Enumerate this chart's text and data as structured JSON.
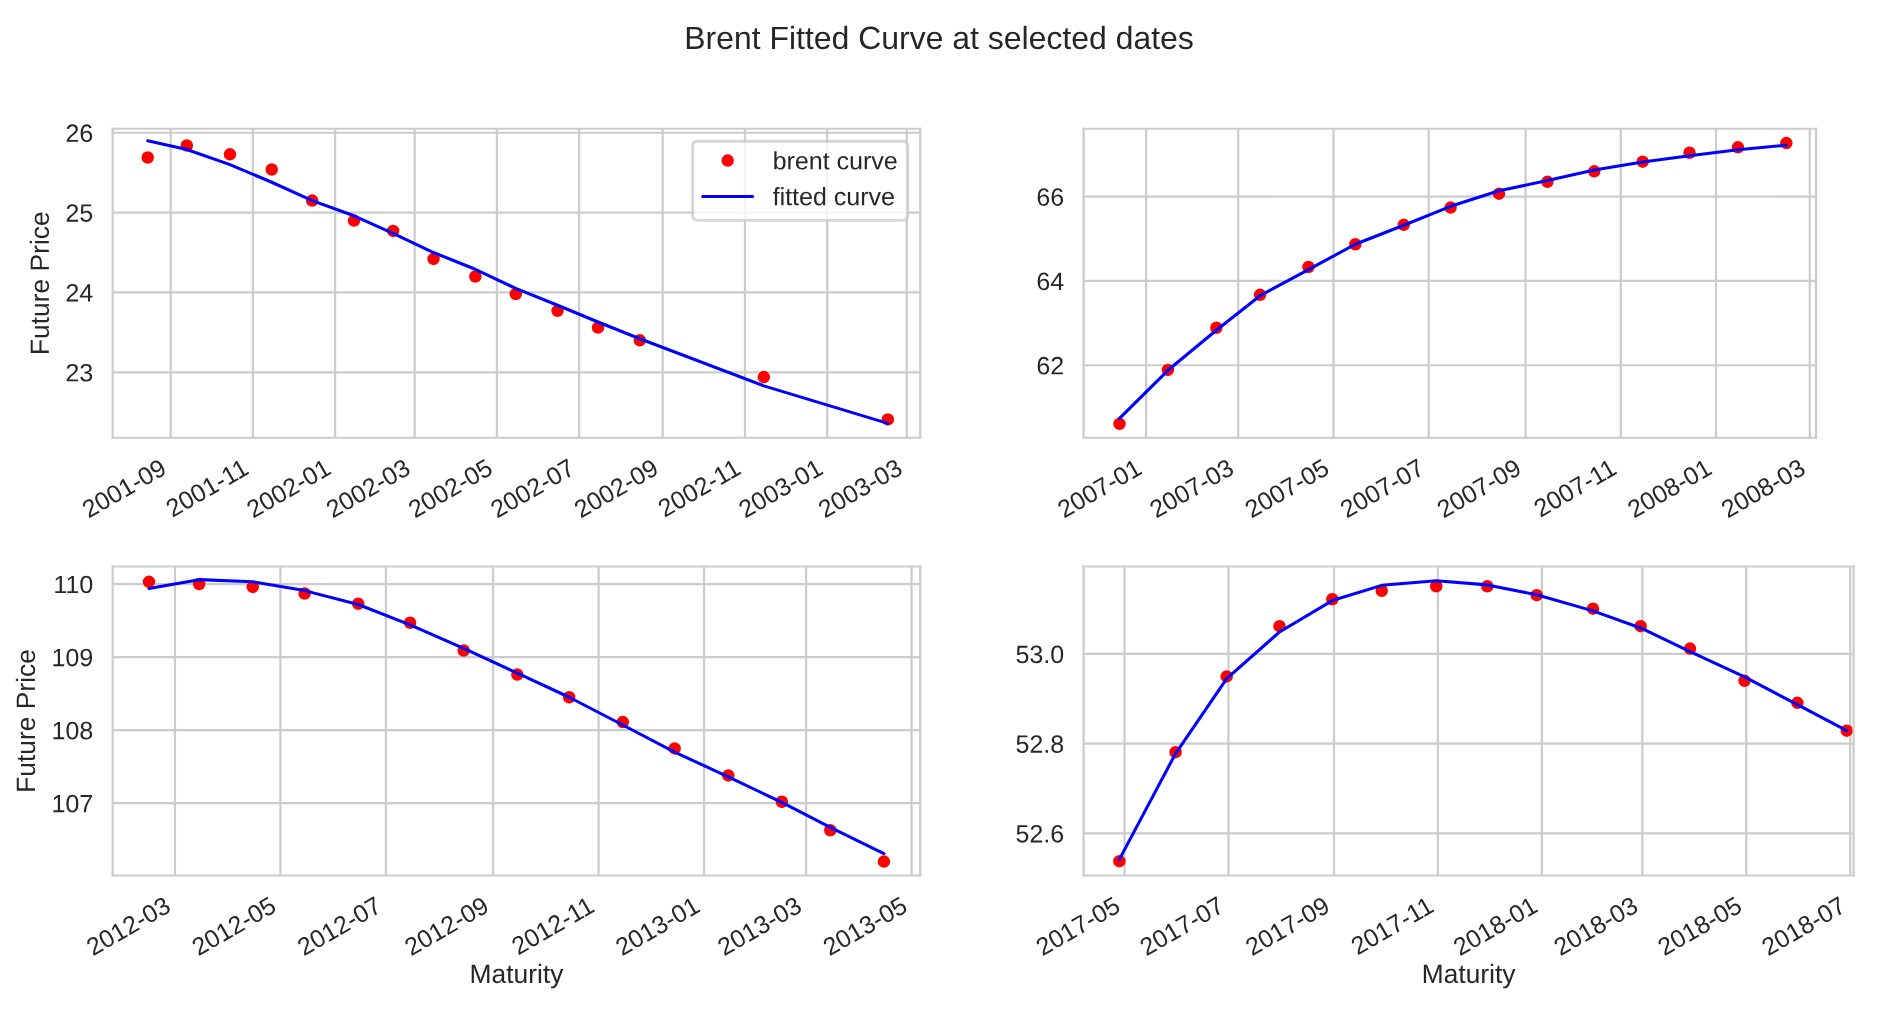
{
  "chart_data": [
    {
      "type": "line",
      "title": "Brent Fitted Curve at selected dates",
      "ylabel": "Future Price",
      "legend": "top right",
      "grid": true,
      "xlim": [
        "2001-07-20",
        "2003-03-11"
      ],
      "ylim": [
        22.18,
        26.05
      ],
      "xticks": [
        "2001-09",
        "2001-11",
        "2002-01",
        "2002-03",
        "2002-05",
        "2002-07",
        "2002-09",
        "2002-11",
        "2003-01",
        "2003-03"
      ],
      "yticks": [
        23,
        24,
        25,
        26
      ],
      "series": [
        {
          "name": "brent curve",
          "type": "scatter",
          "marker": "circle",
          "color": "#ff0000",
          "x": [
            "2001-08-15",
            "2001-09-13",
            "2001-10-15",
            "2001-11-15",
            "2001-12-15",
            "2002-01-15",
            "2002-02-13",
            "2002-03-15",
            "2002-04-15",
            "2002-05-15",
            "2002-06-15",
            "2002-07-15",
            "2002-08-15",
            "2002-11-15",
            "2003-02-15"
          ],
          "values": [
            25.69,
            25.84,
            25.73,
            25.54,
            25.15,
            24.9,
            24.77,
            24.42,
            24.2,
            23.98,
            23.77,
            23.56,
            23.4,
            22.94,
            22.41
          ]
        },
        {
          "name": "fitted curve",
          "type": "line",
          "marker": "none",
          "color": "#0000ff",
          "x": [
            "2001-08-15",
            "2001-09-13",
            "2001-10-15",
            "2001-11-15",
            "2001-12-15",
            "2002-01-15",
            "2002-02-13",
            "2002-03-15",
            "2002-04-15",
            "2002-05-15",
            "2002-06-15",
            "2002-07-15",
            "2002-08-15",
            "2002-11-15",
            "2003-02-15"
          ],
          "values": [
            25.9,
            25.79,
            25.6,
            25.38,
            25.15,
            24.96,
            24.74,
            24.5,
            24.29,
            24.05,
            23.84,
            23.63,
            23.42,
            22.83,
            22.36
          ]
        }
      ]
    },
    {
      "type": "line",
      "grid": true,
      "xlim": [
        "2006-11-22",
        "2008-03-05"
      ],
      "ylim": [
        60.28,
        67.61
      ],
      "xticks": [
        "2007-01",
        "2007-03",
        "2007-05",
        "2007-07",
        "2007-09",
        "2007-11",
        "2008-01",
        "2008-03"
      ],
      "yticks": [
        62,
        64,
        66
      ],
      "series": [
        {
          "type": "scatter",
          "marker": "circle",
          "color": "#ff0000",
          "x": [
            "2006-12-15",
            "2007-01-15",
            "2007-02-15",
            "2007-03-15",
            "2007-04-15",
            "2007-05-15",
            "2007-06-15",
            "2007-07-15",
            "2007-08-15",
            "2007-09-15",
            "2007-10-15",
            "2007-11-15",
            "2007-12-15",
            "2008-01-15",
            "2008-02-15"
          ],
          "values": [
            60.61,
            61.89,
            62.89,
            63.67,
            64.33,
            64.87,
            65.33,
            65.74,
            66.07,
            66.35,
            66.6,
            66.83,
            67.04,
            67.17,
            67.27
          ]
        },
        {
          "type": "line",
          "marker": "none",
          "color": "#0000ff",
          "x": [
            "2006-12-15",
            "2007-01-15",
            "2007-02-15",
            "2007-03-15",
            "2007-04-15",
            "2007-05-15",
            "2007-06-15",
            "2007-07-15",
            "2007-08-15",
            "2007-09-15",
            "2007-10-15",
            "2007-11-15",
            "2007-12-15",
            "2008-01-15",
            "2008-02-15"
          ],
          "values": [
            60.74,
            61.88,
            62.83,
            63.65,
            64.27,
            64.87,
            65.32,
            65.77,
            66.14,
            66.38,
            66.63,
            66.82,
            66.97,
            67.11,
            67.22
          ]
        }
      ]
    },
    {
      "type": "line",
      "ylabel": "Future Price",
      "xlabel": "Maturity",
      "grid": true,
      "xlim": [
        "2012-01-25",
        "2013-05-06"
      ],
      "ylim": [
        106.01,
        110.24
      ],
      "xticks": [
        "2012-03",
        "2012-05",
        "2012-07",
        "2012-09",
        "2012-11",
        "2013-01",
        "2013-03",
        "2013-05"
      ],
      "yticks": [
        107,
        108,
        109,
        110
      ],
      "series": [
        {
          "type": "scatter",
          "marker": "circle",
          "color": "#ff0000",
          "x": [
            "2012-02-15",
            "2012-03-15",
            "2012-04-15",
            "2012-05-15",
            "2012-06-15",
            "2012-07-15",
            "2012-08-15",
            "2012-09-15",
            "2012-10-15",
            "2012-11-15",
            "2012-12-15",
            "2013-01-15",
            "2013-02-15",
            "2013-03-15",
            "2013-04-15"
          ],
          "values": [
            110.03,
            110.0,
            109.96,
            109.87,
            109.73,
            109.47,
            109.09,
            108.76,
            108.45,
            108.11,
            107.75,
            107.38,
            107.02,
            106.63,
            106.2
          ]
        },
        {
          "type": "line",
          "marker": "none",
          "color": "#0000ff",
          "x": [
            "2012-02-15",
            "2012-03-15",
            "2012-04-15",
            "2012-05-15",
            "2012-06-15",
            "2012-07-15",
            "2012-08-15",
            "2012-09-15",
            "2012-10-15",
            "2012-11-15",
            "2012-12-15",
            "2013-01-15",
            "2013-02-15",
            "2013-03-15",
            "2013-04-15"
          ],
          "values": [
            109.94,
            110.06,
            110.03,
            109.91,
            109.72,
            109.44,
            109.12,
            108.78,
            108.45,
            108.07,
            107.7,
            107.36,
            107.01,
            106.67,
            106.31
          ]
        }
      ]
    },
    {
      "type": "line",
      "xlabel": "Maturity",
      "grid": true,
      "xlim": [
        "2017-04-07",
        "2018-07-03"
      ],
      "ylim": [
        52.506,
        53.195
      ],
      "xticks": [
        "2017-05",
        "2017-07",
        "2017-09",
        "2017-11",
        "2018-01",
        "2018-03",
        "2018-05",
        "2018-07"
      ],
      "yticks": [
        {
          "value": 52.6,
          "label": "52.6"
        },
        {
          "value": 52.8,
          "label": "52.8"
        },
        {
          "value": 53.0,
          "label": "53.0"
        }
      ],
      "series": [
        {
          "type": "scatter",
          "marker": "circle",
          "color": "#ff0000",
          "x": [
            "2017-04-28",
            "2017-05-31",
            "2017-06-30",
            "2017-07-31",
            "2017-08-31",
            "2017-09-29",
            "2017-10-31",
            "2017-11-30",
            "2017-12-29",
            "2018-01-31",
            "2018-02-28",
            "2018-03-29",
            "2018-04-30",
            "2018-05-31",
            "2018-06-29"
          ],
          "values": [
            52.538,
            52.781,
            52.95,
            53.062,
            53.122,
            53.141,
            53.151,
            53.151,
            53.131,
            53.101,
            53.062,
            53.012,
            52.94,
            52.891,
            52.829
          ]
        },
        {
          "type": "line",
          "marker": "none",
          "color": "#0000ff",
          "x": [
            "2017-04-28",
            "2017-05-31",
            "2017-06-30",
            "2017-07-31",
            "2017-08-31",
            "2017-09-29",
            "2017-10-31",
            "2017-11-30",
            "2017-12-29",
            "2018-01-31",
            "2018-02-28",
            "2018-03-29",
            "2018-04-30",
            "2018-05-31",
            "2018-06-29"
          ],
          "values": [
            52.542,
            52.778,
            52.945,
            53.049,
            53.119,
            53.153,
            53.163,
            53.154,
            53.132,
            53.096,
            53.058,
            53.005,
            52.949,
            52.887,
            52.829
          ]
        }
      ]
    }
  ]
}
